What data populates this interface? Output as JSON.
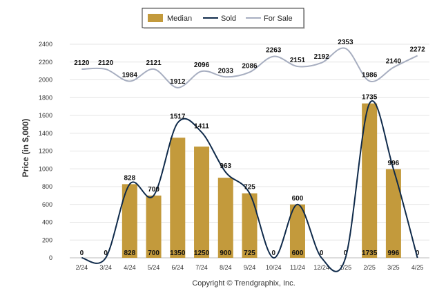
{
  "chart_data": {
    "type": "bar",
    "categories": [
      "2/24",
      "3/24",
      "4/24",
      "5/24",
      "6/24",
      "7/24",
      "8/24",
      "9/24",
      "10/24",
      "11/24",
      "12/24",
      "1/25",
      "2/25",
      "3/25",
      "4/25"
    ],
    "ylabel": "Price (in $,000)",
    "ylim": [
      0,
      2400
    ],
    "yticks": [
      0,
      200,
      400,
      600,
      800,
      1000,
      1200,
      1400,
      1600,
      1800,
      2000,
      2200,
      2400
    ],
    "grid": true,
    "legend_position": "top-center",
    "series": [
      {
        "name": "Median",
        "type": "bar",
        "color": "#c39a3c",
        "values": [
          0,
          0,
          828,
          700,
          1350,
          1250,
          900,
          725,
          0,
          600,
          0,
          0,
          1735,
          996,
          0
        ]
      },
      {
        "name": "Sold",
        "type": "line",
        "color": "#0f2a4a",
        "values": [
          0,
          0,
          828,
          700,
          1517,
          1411,
          963,
          725,
          0,
          600,
          0,
          0,
          1735,
          996,
          0
        ]
      },
      {
        "name": "For Sale",
        "type": "line",
        "color": "#a7aec0",
        "values": [
          2120,
          2120,
          1984,
          2121,
          1912,
          2096,
          2033,
          2086,
          2263,
          2151,
          2192,
          2353,
          1986,
          2140,
          2272
        ]
      }
    ],
    "bar_labels": [
      "0",
      "0",
      "828",
      "700",
      "1350",
      "1250",
      "900",
      "725",
      "0",
      "600",
      "0",
      "0",
      "1735",
      "996",
      "0"
    ],
    "sold_labels": [
      "0",
      "0",
      "828",
      "700",
      "1517",
      "1411",
      "963",
      "725",
      "0",
      "600",
      "0",
      "0",
      "1735",
      "996",
      "0"
    ],
    "forsale_labels": [
      "2120",
      "2120",
      "1984",
      "2121",
      "1912",
      "2096",
      "2033",
      "2086",
      "2263",
      "2151",
      "2192",
      "2353",
      "1986",
      "2140",
      "2272"
    ]
  },
  "footer": {
    "copyright": "Copyright © Trendgraphix, Inc."
  }
}
